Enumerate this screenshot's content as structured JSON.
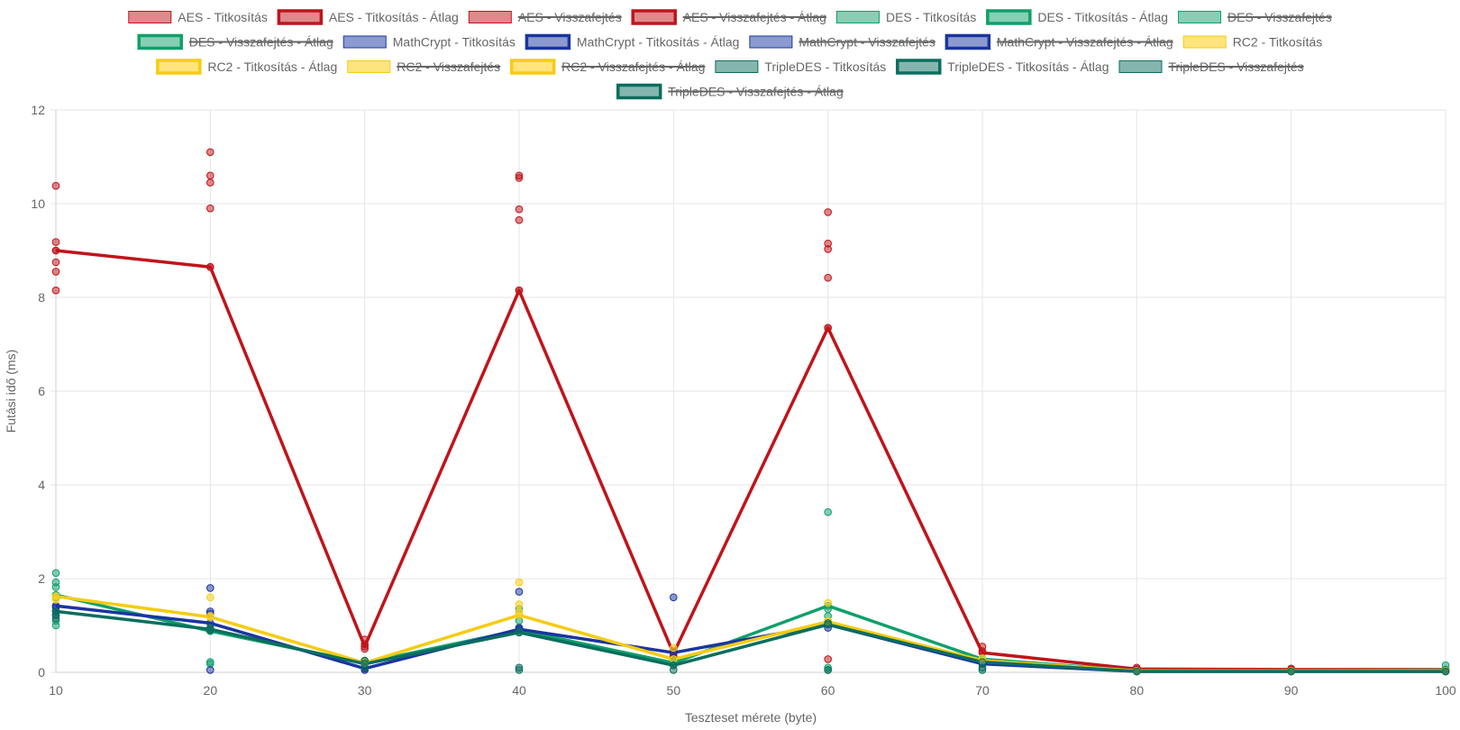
{
  "chart_data": {
    "type": "line",
    "xlabel": "Teszteset mérete (byte)",
    "ylabel": "Futási idő (ms)",
    "xlim": [
      10,
      100
    ],
    "ylim": [
      0,
      12
    ],
    "x_ticks": [
      10,
      20,
      30,
      40,
      50,
      60,
      70,
      80,
      90,
      100
    ],
    "y_ticks": [
      0,
      2,
      4,
      6,
      8,
      10,
      12
    ],
    "grid": true,
    "legend_position": "top",
    "series": [
      {
        "name": "AES - Titkosítás",
        "kind": "scatter",
        "hidden": false,
        "color": "#c0141b",
        "fill": "rgba(192,20,27,0.5)",
        "points": [
          [
            10,
            10.38
          ],
          [
            10,
            9.18
          ],
          [
            10,
            9.0
          ],
          [
            10,
            8.75
          ],
          [
            10,
            8.55
          ],
          [
            10,
            8.15
          ],
          [
            20,
            11.1
          ],
          [
            20,
            10.6
          ],
          [
            20,
            10.45
          ],
          [
            20,
            9.9
          ],
          [
            20,
            8.65
          ],
          [
            30,
            0.7
          ],
          [
            30,
            0.6
          ],
          [
            30,
            0.5
          ],
          [
            40,
            10.6
          ],
          [
            40,
            10.55
          ],
          [
            40,
            9.88
          ],
          [
            40,
            9.65
          ],
          [
            40,
            8.15
          ],
          [
            50,
            0.45
          ],
          [
            50,
            0.35
          ],
          [
            60,
            9.82
          ],
          [
            60,
            9.15
          ],
          [
            60,
            9.03
          ],
          [
            60,
            8.42
          ],
          [
            60,
            7.35
          ],
          [
            60,
            0.28
          ],
          [
            70,
            0.55
          ],
          [
            70,
            0.45
          ],
          [
            80,
            0.1
          ],
          [
            80,
            0.05
          ],
          [
            90,
            0.08
          ],
          [
            90,
            0.05
          ],
          [
            100,
            0.05
          ]
        ]
      },
      {
        "name": "AES - Titkosítás - Átlag",
        "kind": "line",
        "hidden": false,
        "color": "#c0141b",
        "fill": "rgba(192,20,27,0.5)",
        "points": [
          [
            10,
            9.0
          ],
          [
            20,
            8.65
          ],
          [
            30,
            0.55
          ],
          [
            40,
            8.15
          ],
          [
            50,
            0.4
          ],
          [
            60,
            7.35
          ],
          [
            70,
            0.42
          ],
          [
            80,
            0.07
          ],
          [
            90,
            0.06
          ],
          [
            100,
            0.06
          ]
        ]
      },
      {
        "name": "AES - Visszafejtés",
        "kind": "scatter",
        "hidden": true,
        "color": "#c0141b",
        "fill": "rgba(192,20,27,0.5)",
        "points": []
      },
      {
        "name": "AES - Visszafejtés - Átlag",
        "kind": "line",
        "hidden": true,
        "color": "#c0141b",
        "fill": "rgba(192,20,27,0.5)",
        "points": []
      },
      {
        "name": "DES - Titkosítás",
        "kind": "scatter",
        "hidden": false,
        "color": "#0ea06a",
        "fill": "rgba(14,160,106,0.5)",
        "points": [
          [
            10,
            2.12
          ],
          [
            10,
            1.92
          ],
          [
            10,
            1.82
          ],
          [
            10,
            1.6
          ],
          [
            10,
            1.1
          ],
          [
            10,
            1.0
          ],
          [
            20,
            0.22
          ],
          [
            20,
            0.18
          ],
          [
            20,
            0.88
          ],
          [
            30,
            0.25
          ],
          [
            30,
            0.2
          ],
          [
            40,
            1.35
          ],
          [
            40,
            1.1
          ],
          [
            40,
            0.95
          ],
          [
            50,
            0.25
          ],
          [
            60,
            3.42
          ],
          [
            60,
            1.35
          ],
          [
            60,
            1.2
          ],
          [
            60,
            1.1
          ],
          [
            60,
            0.1
          ],
          [
            60,
            0.05
          ],
          [
            70,
            0.3
          ],
          [
            80,
            0.03
          ],
          [
            90,
            0.03
          ],
          [
            100,
            0.15
          ]
        ]
      },
      {
        "name": "DES - Titkosítás - Átlag",
        "kind": "line",
        "hidden": false,
        "color": "#0ea06a",
        "fill": "rgba(14,160,106,0.5)",
        "points": [
          [
            10,
            1.65
          ],
          [
            20,
            0.88
          ],
          [
            30,
            0.2
          ],
          [
            40,
            0.9
          ],
          [
            50,
            0.2
          ],
          [
            60,
            1.42
          ],
          [
            70,
            0.28
          ],
          [
            80,
            0.03
          ],
          [
            90,
            0.03
          ],
          [
            100,
            0.05
          ]
        ]
      },
      {
        "name": "DES - Visszafejtés",
        "kind": "scatter",
        "hidden": true,
        "color": "#0ea06a",
        "fill": "rgba(14,160,106,0.5)",
        "points": []
      },
      {
        "name": "DES - Visszafejtés - Átlag",
        "kind": "line",
        "hidden": true,
        "color": "#0ea06a",
        "fill": "rgba(14,160,106,0.5)",
        "points": []
      },
      {
        "name": "MathCrypt - Titkosítás",
        "kind": "scatter",
        "hidden": false,
        "color": "#1a35a0",
        "fill": "rgba(26,53,160,0.5)",
        "points": [
          [
            10,
            1.42
          ],
          [
            10,
            1.38
          ],
          [
            10,
            1.3
          ],
          [
            10,
            1.22
          ],
          [
            20,
            1.8
          ],
          [
            20,
            1.3
          ],
          [
            20,
            1.25
          ],
          [
            20,
            0.05
          ],
          [
            30,
            0.05
          ],
          [
            30,
            0.1
          ],
          [
            40,
            1.72
          ],
          [
            40,
            0.95
          ],
          [
            50,
            1.6
          ],
          [
            50,
            0.42
          ],
          [
            60,
            0.95
          ],
          [
            70,
            0.2
          ],
          [
            80,
            0.02
          ],
          [
            90,
            0.02
          ],
          [
            100,
            0.02
          ]
        ]
      },
      {
        "name": "MathCrypt - Titkosítás - Átlag",
        "kind": "line",
        "hidden": false,
        "color": "#1a35a0",
        "fill": "rgba(26,53,160,0.5)",
        "points": [
          [
            10,
            1.42
          ],
          [
            20,
            1.05
          ],
          [
            30,
            0.08
          ],
          [
            40,
            0.92
          ],
          [
            50,
            0.42
          ],
          [
            60,
            1.02
          ],
          [
            70,
            0.18
          ],
          [
            80,
            0.02
          ],
          [
            90,
            0.02
          ],
          [
            100,
            0.02
          ]
        ]
      },
      {
        "name": "MathCrypt - Visszafejtés",
        "kind": "scatter",
        "hidden": true,
        "color": "#1a35a0",
        "fill": "rgba(26,53,160,0.5)",
        "points": []
      },
      {
        "name": "MathCrypt - Visszafejtés - Átlag",
        "kind": "line",
        "hidden": true,
        "color": "#1a35a0",
        "fill": "rgba(26,53,160,0.5)",
        "points": []
      },
      {
        "name": "RC2 - Titkosítás",
        "kind": "scatter",
        "hidden": false,
        "color": "#f5cc12",
        "fill": "rgba(255,210,40,0.6)",
        "points": [
          [
            10,
            1.62
          ],
          [
            10,
            1.55
          ],
          [
            20,
            1.6
          ],
          [
            20,
            1.2
          ],
          [
            30,
            0.22
          ],
          [
            40,
            1.92
          ],
          [
            40,
            1.45
          ],
          [
            40,
            1.3
          ],
          [
            50,
            0.52
          ],
          [
            60,
            1.48
          ],
          [
            60,
            1.1
          ],
          [
            70,
            0.3
          ],
          [
            80,
            0.03
          ],
          [
            90,
            0.03
          ],
          [
            100,
            0.03
          ]
        ]
      },
      {
        "name": "RC2 - Titkosítás - Átlag",
        "kind": "line",
        "hidden": false,
        "color": "#f5cc12",
        "fill": "rgba(255,210,40,0.6)",
        "points": [
          [
            10,
            1.62
          ],
          [
            20,
            1.18
          ],
          [
            30,
            0.2
          ],
          [
            40,
            1.22
          ],
          [
            50,
            0.28
          ],
          [
            60,
            1.08
          ],
          [
            70,
            0.25
          ],
          [
            80,
            0.03
          ],
          [
            90,
            0.03
          ],
          [
            100,
            0.03
          ]
        ]
      },
      {
        "name": "RC2 - Visszafejtés",
        "kind": "scatter",
        "hidden": true,
        "color": "#f5cc12",
        "fill": "rgba(255,210,40,0.6)",
        "points": []
      },
      {
        "name": "RC2 - Visszafejtés - Átlag",
        "kind": "line",
        "hidden": true,
        "color": "#f5cc12",
        "fill": "rgba(255,210,40,0.6)",
        "points": []
      },
      {
        "name": "TripleDES - Titkosítás",
        "kind": "scatter",
        "hidden": false,
        "color": "#0b6e5e",
        "fill": "rgba(11,110,94,0.5)",
        "points": [
          [
            10,
            1.3
          ],
          [
            10,
            1.22
          ],
          [
            10,
            1.15
          ],
          [
            20,
            0.95
          ],
          [
            20,
            0.9
          ],
          [
            30,
            0.25
          ],
          [
            30,
            0.1
          ],
          [
            40,
            0.85
          ],
          [
            40,
            0.1
          ],
          [
            40,
            0.05
          ],
          [
            50,
            0.15
          ],
          [
            50,
            0.05
          ],
          [
            60,
            1.05
          ],
          [
            60,
            0.05
          ],
          [
            70,
            0.1
          ],
          [
            70,
            0.05
          ],
          [
            80,
            0.02
          ],
          [
            90,
            0.02
          ],
          [
            100,
            0.02
          ]
        ]
      },
      {
        "name": "TripleDES - Titkosítás - Átlag",
        "kind": "line",
        "hidden": false,
        "color": "#0b6e5e",
        "fill": "rgba(11,110,94,0.5)",
        "points": [
          [
            10,
            1.3
          ],
          [
            20,
            0.92
          ],
          [
            30,
            0.18
          ],
          [
            40,
            0.85
          ],
          [
            50,
            0.15
          ],
          [
            60,
            1.02
          ],
          [
            70,
            0.22
          ],
          [
            80,
            0.02
          ],
          [
            90,
            0.02
          ],
          [
            100,
            0.02
          ]
        ]
      },
      {
        "name": "TripleDES - Visszafejtés",
        "kind": "scatter",
        "hidden": true,
        "color": "#0b6e5e",
        "fill": "rgba(11,110,94,0.5)",
        "points": []
      },
      {
        "name": "TripleDES - Visszafejtés - Átlag",
        "kind": "line",
        "hidden": true,
        "color": "#0b6e5e",
        "fill": "rgba(11,110,94,0.5)",
        "points": []
      }
    ]
  }
}
